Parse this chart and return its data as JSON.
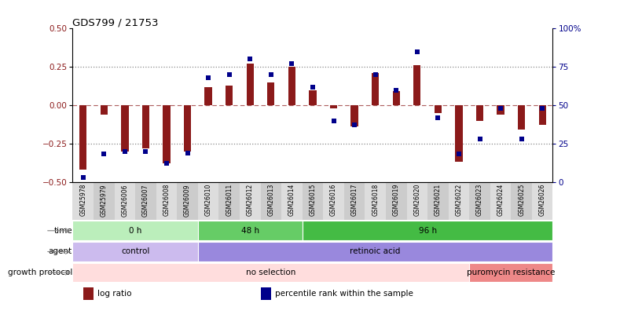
{
  "title": "GDS799 / 21753",
  "samples": [
    "GSM25978",
    "GSM25979",
    "GSM26006",
    "GSM26007",
    "GSM26008",
    "GSM26009",
    "GSM26010",
    "GSM26011",
    "GSM26012",
    "GSM26013",
    "GSM26014",
    "GSM26015",
    "GSM26016",
    "GSM26017",
    "GSM26018",
    "GSM26019",
    "GSM26020",
    "GSM26021",
    "GSM26022",
    "GSM26023",
    "GSM26024",
    "GSM26025",
    "GSM26026"
  ],
  "log_ratio": [
    -0.42,
    -0.06,
    -0.3,
    -0.28,
    -0.38,
    -0.3,
    0.12,
    0.13,
    0.27,
    0.15,
    0.25,
    0.1,
    -0.02,
    -0.14,
    0.21,
    0.09,
    0.26,
    -0.05,
    -0.37,
    -0.1,
    -0.06,
    -0.16,
    -0.13
  ],
  "percentile": [
    3,
    18,
    20,
    20,
    12,
    19,
    68,
    70,
    80,
    70,
    77,
    62,
    40,
    37,
    70,
    60,
    85,
    42,
    18,
    28,
    48,
    28,
    48
  ],
  "bar_color": "#8B1A1A",
  "dot_color": "#00008B",
  "ylim_left": [
    -0.5,
    0.5
  ],
  "ylim_right": [
    0,
    100
  ],
  "yticks_left": [
    -0.5,
    -0.25,
    0,
    0.25,
    0.5
  ],
  "yticks_right": [
    0,
    25,
    50,
    75,
    100
  ],
  "hlines_dotted": [
    -0.25,
    0.25
  ],
  "hline_zero": 0.0,
  "time_groups": [
    {
      "label": "0 h",
      "start": 0,
      "end": 6,
      "color": "#BBEEBB"
    },
    {
      "label": "48 h",
      "start": 6,
      "end": 11,
      "color": "#66CC66"
    },
    {
      "label": "96 h",
      "start": 11,
      "end": 23,
      "color": "#44BB44"
    }
  ],
  "agent_groups": [
    {
      "label": "control",
      "start": 0,
      "end": 6,
      "color": "#CCBBEE"
    },
    {
      "label": "retinoic acid",
      "start": 6,
      "end": 23,
      "color": "#9988DD"
    }
  ],
  "growth_groups": [
    {
      "label": "no selection",
      "start": 0,
      "end": 19,
      "color": "#FFDDDD"
    },
    {
      "label": "puromycin resistance",
      "start": 19,
      "end": 23,
      "color": "#EE8888"
    }
  ],
  "legend_items": [
    {
      "label": "log ratio",
      "color": "#8B1A1A"
    },
    {
      "label": "percentile rank within the sample",
      "color": "#00008B"
    }
  ],
  "xtick_bg_colors": [
    "#DDDDDD",
    "#CCCCCC"
  ]
}
